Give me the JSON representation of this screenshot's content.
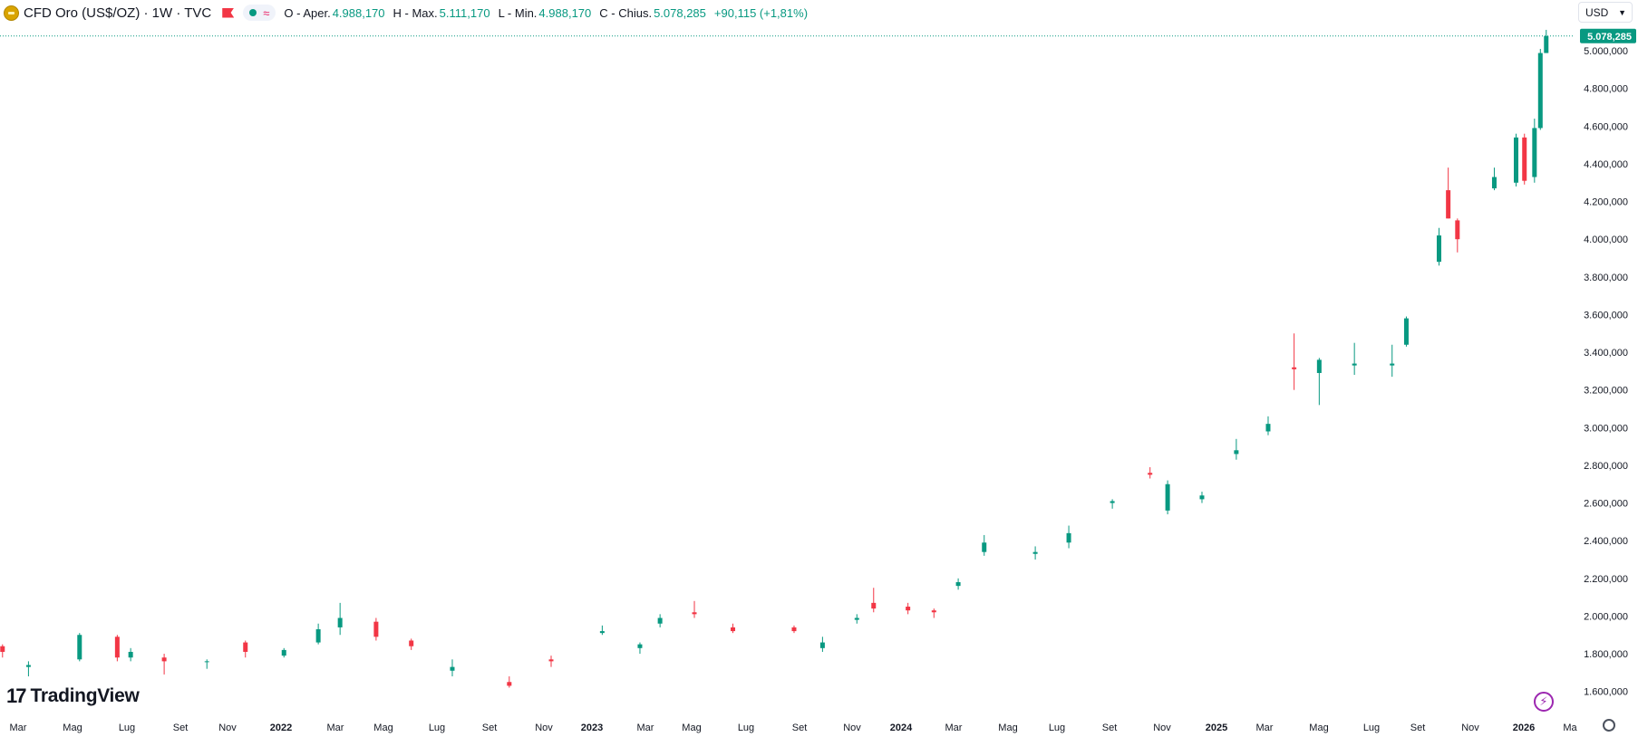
{
  "header": {
    "symbol": "CFD Oro (US$/OZ) · 1W · TVC",
    "open_label": "O - Aper.",
    "open_value": "4.988,170",
    "high_label": "H - Max.",
    "high_value": "5.111,170",
    "low_label": "L - Min.",
    "low_value": "4.988,170",
    "close_label": "C - Chius.",
    "close_value": "5.078,285",
    "change": "+90,115 (+1,81%)",
    "approx_symbol": "≈",
    "currency": "USD"
  },
  "branding": {
    "logo_text": "TradingView",
    "logo_mark": "17"
  },
  "icons": {
    "coin": "gold-coin-icon",
    "flag": "flag-icon",
    "live": "bolt-icon",
    "settings": "gear-icon"
  },
  "colors": {
    "up": "#089981",
    "down": "#f23645",
    "grid": "#e0e3eb",
    "accent": "#9c27b0"
  },
  "chart_data": {
    "type": "candlestick",
    "interval": "1W",
    "x_labels": [
      "Mar",
      "Mag",
      "Lug",
      "Set",
      "Nov",
      "2022",
      "Mar",
      "Mag",
      "Lug",
      "Set",
      "Nov",
      "2023",
      "Mar",
      "Mag",
      "Lug",
      "Set",
      "Nov",
      "2024",
      "Mar",
      "Mag",
      "Lug",
      "Set",
      "Nov",
      "2025",
      "Mar",
      "Mag",
      "Lug",
      "Set",
      "Nov",
      "2026",
      "Ma"
    ],
    "x_label_bold": [
      false,
      false,
      false,
      false,
      false,
      true,
      false,
      false,
      false,
      false,
      false,
      true,
      false,
      false,
      false,
      false,
      false,
      true,
      false,
      false,
      false,
      false,
      false,
      true,
      false,
      false,
      false,
      false,
      false,
      true,
      false
    ],
    "y_axis": {
      "min": 1560,
      "max": 5135,
      "ticks": [
        1600,
        1800,
        2000,
        2200,
        2400,
        2600,
        2800,
        3000,
        3200,
        3400,
        3600,
        3800,
        4000,
        4200,
        4400,
        4600,
        4800,
        5000
      ],
      "tick_labels": [
        "1.600,000",
        "1.800,000",
        "2.000,000",
        "2.200,000",
        "2.400,000",
        "2.600,000",
        "2.800,000",
        "3.000,000",
        "3.200,000",
        "3.400,000",
        "3.600,000",
        "3.800,000",
        "4.000,000",
        "4.200,000",
        "4.400,000",
        "4.600,000",
        "4.800,000",
        "5.000,000"
      ]
    },
    "last_price": 5078.285,
    "last_price_label": "5.078,285",
    "grid": false,
    "series": [
      {
        "t": "2021-01-29",
        "o": 1840,
        "h": 1850,
        "l": 1780,
        "c": 1810
      },
      {
        "t": "2021-03-01",
        "o": 1730,
        "h": 1760,
        "l": 1680,
        "c": 1740
      },
      {
        "t": "2021-05-01",
        "o": 1770,
        "h": 1910,
        "l": 1760,
        "c": 1900
      },
      {
        "t": "2021-06-15",
        "o": 1890,
        "h": 1900,
        "l": 1760,
        "c": 1780
      },
      {
        "t": "2021-07-01",
        "o": 1780,
        "h": 1830,
        "l": 1760,
        "c": 1810
      },
      {
        "t": "2021-08-10",
        "o": 1780,
        "h": 1800,
        "l": 1690,
        "c": 1760
      },
      {
        "t": "2021-09-30",
        "o": 1760,
        "h": 1770,
        "l": 1720,
        "c": 1760
      },
      {
        "t": "2021-11-15",
        "o": 1860,
        "h": 1870,
        "l": 1780,
        "c": 1810
      },
      {
        "t": "2021-12-31",
        "o": 1790,
        "h": 1830,
        "l": 1780,
        "c": 1820
      },
      {
        "t": "2022-02-10",
        "o": 1860,
        "h": 1960,
        "l": 1850,
        "c": 1930
      },
      {
        "t": "2022-03-08",
        "o": 1940,
        "h": 2070,
        "l": 1900,
        "c": 1990
      },
      {
        "t": "2022-04-20",
        "o": 1970,
        "h": 1990,
        "l": 1870,
        "c": 1890
      },
      {
        "t": "2022-06-01",
        "o": 1870,
        "h": 1880,
        "l": 1820,
        "c": 1840
      },
      {
        "t": "2022-07-20",
        "o": 1710,
        "h": 1770,
        "l": 1680,
        "c": 1730
      },
      {
        "t": "2022-09-26",
        "o": 1650,
        "h": 1680,
        "l": 1620,
        "c": 1630
      },
      {
        "t": "2022-11-15",
        "o": 1770,
        "h": 1790,
        "l": 1730,
        "c": 1760
      },
      {
        "t": "2023-01-15",
        "o": 1910,
        "h": 1950,
        "l": 1900,
        "c": 1920
      },
      {
        "t": "2023-03-01",
        "o": 1830,
        "h": 1860,
        "l": 1800,
        "c": 1850
      },
      {
        "t": "2023-03-25",
        "o": 1960,
        "h": 2010,
        "l": 1940,
        "c": 1990
      },
      {
        "t": "2023-05-05",
        "o": 2020,
        "h": 2080,
        "l": 1990,
        "c": 2010
      },
      {
        "t": "2023-06-20",
        "o": 1940,
        "h": 1960,
        "l": 1910,
        "c": 1920
      },
      {
        "t": "2023-09-01",
        "o": 1940,
        "h": 1950,
        "l": 1910,
        "c": 1920
      },
      {
        "t": "2023-10-05",
        "o": 1830,
        "h": 1890,
        "l": 1810,
        "c": 1860
      },
      {
        "t": "2023-11-15",
        "o": 1980,
        "h": 2010,
        "l": 1960,
        "c": 1990
      },
      {
        "t": "2023-12-05",
        "o": 2070,
        "h": 2150,
        "l": 2020,
        "c": 2040
      },
      {
        "t": "2024-01-15",
        "o": 2050,
        "h": 2070,
        "l": 2010,
        "c": 2030
      },
      {
        "t": "2024-02-15",
        "o": 2030,
        "h": 2040,
        "l": 1990,
        "c": 2020
      },
      {
        "t": "2024-03-15",
        "o": 2160,
        "h": 2200,
        "l": 2140,
        "c": 2180
      },
      {
        "t": "2024-04-15",
        "o": 2340,
        "h": 2430,
        "l": 2320,
        "c": 2390
      },
      {
        "t": "2024-06-15",
        "o": 2330,
        "h": 2370,
        "l": 2300,
        "c": 2340
      },
      {
        "t": "2024-07-25",
        "o": 2390,
        "h": 2480,
        "l": 2360,
        "c": 2440
      },
      {
        "t": "2024-09-15",
        "o": 2600,
        "h": 2620,
        "l": 2570,
        "c": 2610
      },
      {
        "t": "2024-10-30",
        "o": 2760,
        "h": 2790,
        "l": 2730,
        "c": 2750
      },
      {
        "t": "2024-11-20",
        "o": 2560,
        "h": 2720,
        "l": 2540,
        "c": 2700
      },
      {
        "t": "2024-12-31",
        "o": 2620,
        "h": 2660,
        "l": 2600,
        "c": 2640
      },
      {
        "t": "2025-02-10",
        "o": 2860,
        "h": 2940,
        "l": 2830,
        "c": 2880
      },
      {
        "t": "2025-03-20",
        "o": 2980,
        "h": 3060,
        "l": 2960,
        "c": 3020
      },
      {
        "t": "2025-04-20",
        "o": 3320,
        "h": 3500,
        "l": 3200,
        "c": 3310
      },
      {
        "t": "2025-05-20",
        "o": 3290,
        "h": 3370,
        "l": 3120,
        "c": 3360
      },
      {
        "t": "2025-07-01",
        "o": 3330,
        "h": 3450,
        "l": 3280,
        "c": 3340
      },
      {
        "t": "2025-08-15",
        "o": 3330,
        "h": 3440,
        "l": 3270,
        "c": 3340
      },
      {
        "t": "2025-09-01",
        "o": 3440,
        "h": 3590,
        "l": 3430,
        "c": 3580
      },
      {
        "t": "2025-10-10",
        "o": 3880,
        "h": 4060,
        "l": 3860,
        "c": 4020
      },
      {
        "t": "2025-10-21",
        "o": 4260,
        "h": 4380,
        "l": 4110,
        "c": 4110
      },
      {
        "t": "2025-11-01",
        "o": 4100,
        "h": 4110,
        "l": 3930,
        "c": 4000
      },
      {
        "t": "2025-12-15",
        "o": 4270,
        "h": 4380,
        "l": 4260,
        "c": 4330
      },
      {
        "t": "2026-01-10",
        "o": 4300,
        "h": 4560,
        "l": 4280,
        "c": 4540
      },
      {
        "t": "2026-01-20",
        "o": 4540,
        "h": 4560,
        "l": 4290,
        "c": 4310
      },
      {
        "t": "2026-02-01",
        "o": 4330,
        "h": 4640,
        "l": 4300,
        "c": 4590
      },
      {
        "t": "2026-02-08",
        "o": 4590,
        "h": 5010,
        "l": 4580,
        "c": 4988.17
      },
      {
        "t": "2026-02-15",
        "o": 4988.17,
        "h": 5111.17,
        "l": 4988.17,
        "c": 5078.285
      }
    ]
  }
}
